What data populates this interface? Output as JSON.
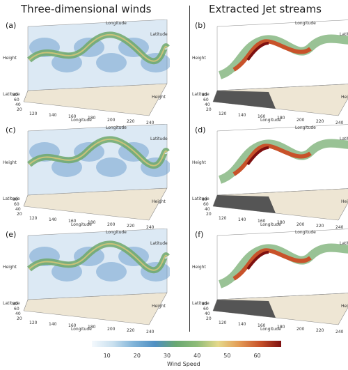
{
  "titles": {
    "left": "Three-dimensional winds",
    "right": "Extracted Jet streams"
  },
  "panels": [
    {
      "label": "(a)",
      "type": "winds"
    },
    {
      "label": "(b)",
      "type": "jet"
    },
    {
      "label": "(c)",
      "type": "winds"
    },
    {
      "label": "(d)",
      "type": "jet"
    },
    {
      "label": "(e)",
      "type": "winds"
    },
    {
      "label": "(f)",
      "type": "jet"
    }
  ],
  "axes": {
    "height": "Height",
    "latitude": "Latitude",
    "longitude": "Longitude",
    "longitude_ticks": [
      "120",
      "140",
      "160",
      "180",
      "200",
      "220",
      "240"
    ],
    "latitude_ticks": [
      "20",
      "40",
      "60",
      "80"
    ]
  },
  "colorbar": {
    "title": "Wind Speed",
    "ticks": [
      "10",
      "20",
      "30",
      "40",
      "50",
      "60"
    ],
    "range": [
      5,
      68
    ],
    "colors": [
      "#f4f9fd",
      "#c9e0ef",
      "#7fb3d8",
      "#4f8fc3",
      "#69a872",
      "#8fbc78",
      "#e5d98a",
      "#e39b55",
      "#c8522a",
      "#7e1010"
    ]
  }
}
